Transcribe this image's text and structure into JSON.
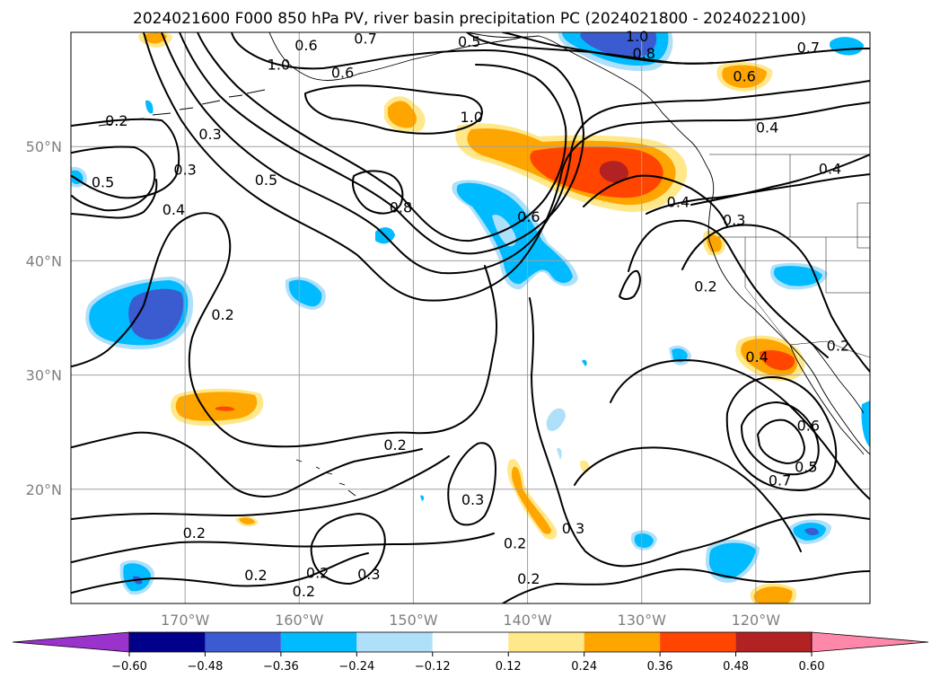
{
  "title": "2024021600 F000 850 hPa PV, river basin precipitation PC (2024021800 - 2024022100)",
  "map": {
    "lon_range": [
      -180,
      -110
    ],
    "lat_range": [
      10,
      60
    ],
    "projection": "PlateCarree",
    "grid": true,
    "lat_labels": [
      {
        "lat": 50,
        "text": "50°N"
      },
      {
        "lat": 40,
        "text": "40°N"
      },
      {
        "lat": 30,
        "text": "30°N"
      },
      {
        "lat": 20,
        "text": "20°N"
      }
    ],
    "lon_labels": [
      {
        "lon": -170,
        "text": "170°W"
      },
      {
        "lon": -160,
        "text": "160°W"
      },
      {
        "lon": -150,
        "text": "150°W"
      },
      {
        "lon": -140,
        "text": "140°W"
      },
      {
        "lon": -130,
        "text": "130°W"
      },
      {
        "lon": -120,
        "text": "120°W"
      }
    ]
  },
  "colorbar": {
    "ticks": [
      "−0.60",
      "−0.48",
      "−0.36",
      "−0.24",
      "−0.12",
      "0.12",
      "0.24",
      "0.36",
      "0.48",
      "0.60"
    ],
    "colors": [
      "#9933cc",
      "#00008b",
      "#3b5bd1",
      "#00bbff",
      "#aee0fa",
      "#ffffff",
      "#ffe88a",
      "#ffa500",
      "#ff4500",
      "#b22222",
      "#ff88aa"
    ],
    "extend": "both"
  },
  "contour_labels": [
    {
      "lon": -176.0,
      "lat": 52.3,
      "text": "0.2"
    },
    {
      "lon": -170.0,
      "lat": 48.0,
      "text": "0.3"
    },
    {
      "lon": -171.0,
      "lat": 44.5,
      "text": "0.4"
    },
    {
      "lon": -177.2,
      "lat": 46.9,
      "text": "0.5"
    },
    {
      "lon": -167.8,
      "lat": 51.1,
      "text": "0.3"
    },
    {
      "lon": -162.9,
      "lat": 47.1,
      "text": "0.5"
    },
    {
      "lon": -161.8,
      "lat": 57.2,
      "text": "1.0"
    },
    {
      "lon": -151.1,
      "lat": 44.7,
      "text": "0.8"
    },
    {
      "lon": -144.9,
      "lat": 52.6,
      "text": "1.0"
    },
    {
      "lon": -156.2,
      "lat": 56.5,
      "text": "0.6"
    },
    {
      "lon": -145.1,
      "lat": 59.2,
      "text": "0.5"
    },
    {
      "lon": -154.2,
      "lat": 59.5,
      "text": "0.7"
    },
    {
      "lon": -159.4,
      "lat": 58.9,
      "text": "0.6"
    },
    {
      "lon": -139.9,
      "lat": 43.9,
      "text": "0.6"
    },
    {
      "lon": -130.4,
      "lat": 59.7,
      "text": "1.0"
    },
    {
      "lon": -129.8,
      "lat": 58.2,
      "text": "0.8"
    },
    {
      "lon": -121.0,
      "lat": 56.2,
      "text": "0.6"
    },
    {
      "lon": -115.4,
      "lat": 58.7,
      "text": "0.7"
    },
    {
      "lon": -119.0,
      "lat": 51.7,
      "text": "0.4"
    },
    {
      "lon": -126.8,
      "lat": 45.2,
      "text": "0.4"
    },
    {
      "lon": -121.9,
      "lat": 43.6,
      "text": "0.3"
    },
    {
      "lon": -113.5,
      "lat": 48.1,
      "text": "0.4"
    },
    {
      "lon": -124.4,
      "lat": 37.8,
      "text": "0.2"
    },
    {
      "lon": -112.8,
      "lat": 32.6,
      "text": "0.2"
    },
    {
      "lon": -119.9,
      "lat": 31.6,
      "text": "0.4"
    },
    {
      "lon": -115.4,
      "lat": 25.6,
      "text": "0.6"
    },
    {
      "lon": -115.6,
      "lat": 22.0,
      "text": "0.5"
    },
    {
      "lon": -117.9,
      "lat": 20.8,
      "text": "0.7"
    },
    {
      "lon": -166.7,
      "lat": 35.3,
      "text": "0.2"
    },
    {
      "lon": -151.6,
      "lat": 23.9,
      "text": "0.2"
    },
    {
      "lon": -144.8,
      "lat": 19.1,
      "text": "0.3"
    },
    {
      "lon": -141.1,
      "lat": 15.3,
      "text": "0.2"
    },
    {
      "lon": -136.0,
      "lat": 16.6,
      "text": "0.3"
    },
    {
      "lon": -139.9,
      "lat": 12.2,
      "text": "0.2"
    },
    {
      "lon": -158.4,
      "lat": 12.7,
      "text": "0.2"
    },
    {
      "lon": -169.2,
      "lat": 16.2,
      "text": "0.2"
    },
    {
      "lon": -163.8,
      "lat": 12.5,
      "text": "0.2"
    },
    {
      "lon": -159.6,
      "lat": 11.1,
      "text": "0.2"
    },
    {
      "lon": -153.9,
      "lat": 12.6,
      "text": "0.3"
    }
  ]
}
